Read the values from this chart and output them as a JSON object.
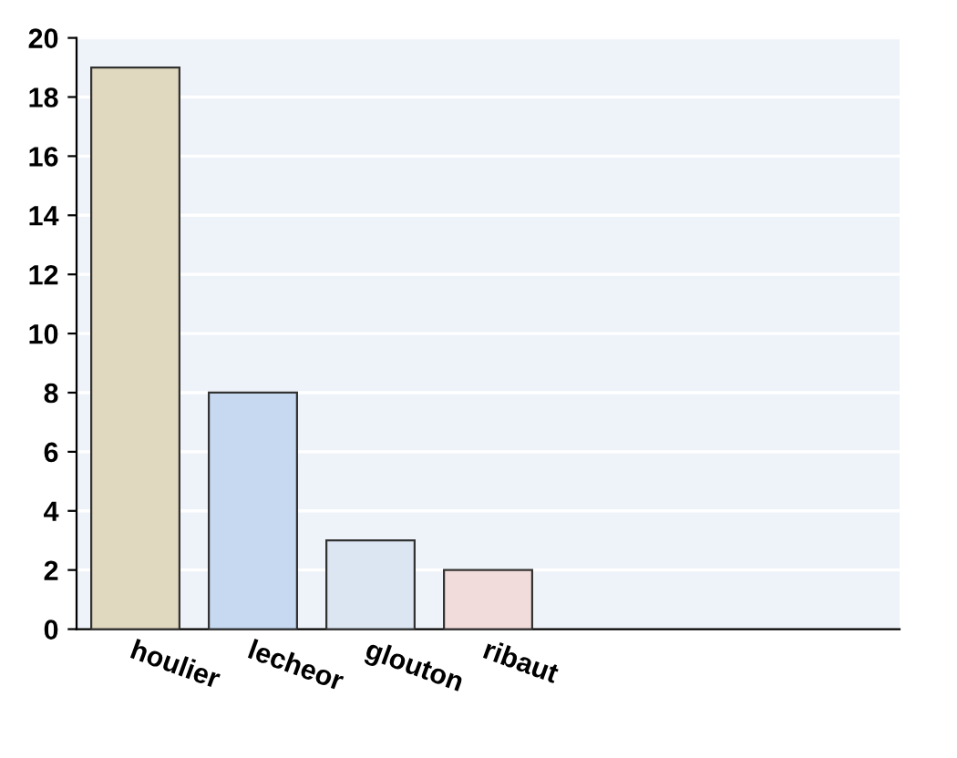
{
  "chart_data": {
    "type": "bar",
    "categories": [
      "houlier",
      "lecheor",
      "glouton",
      "ribaut",
      null,
      null,
      null
    ],
    "values": [
      19,
      8,
      3,
      2,
      null,
      null,
      null
    ],
    "colors": [
      "#e0d9bf",
      "#c6d9f1",
      "#dce6f2",
      "#f2dcdb",
      "#ffffff",
      "#ffffff",
      "#ffffff"
    ],
    "ylim": [
      0,
      20
    ],
    "yticks": [
      0,
      2,
      4,
      6,
      8,
      10,
      12,
      14,
      16,
      18,
      20
    ],
    "grid": "y"
  }
}
